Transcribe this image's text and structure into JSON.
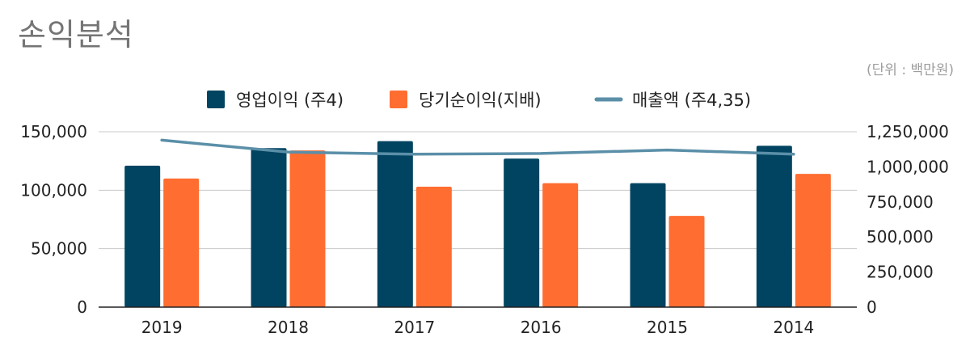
{
  "title": "손익분석",
  "unit_note": "(단위 : 백만원)",
  "colors": {
    "operating_profit": "#004461",
    "net_income": "#ff6d31",
    "revenue": "#5b8fa8"
  },
  "chart_data": {
    "type": "bar",
    "title": "손익분석",
    "categories": [
      "2019",
      "2018",
      "2017",
      "2016",
      "2015",
      "2014"
    ],
    "series": [
      {
        "name": "영업이익 (주4)",
        "kind": "bar",
        "axis": "left",
        "color": "#004461",
        "values": [
          121000,
          136000,
          142000,
          127000,
          106000,
          138000
        ]
      },
      {
        "name": "당기순이익(지배)",
        "kind": "bar",
        "axis": "left",
        "color": "#ff6d31",
        "values": [
          110000,
          134000,
          103000,
          106000,
          78000,
          114000
        ]
      },
      {
        "name": "매출액 (주4,35)",
        "kind": "line",
        "axis": "right",
        "color": "#5b8fa8",
        "values": [
          1190000,
          1105000,
          1090000,
          1095000,
          1120000,
          1090000
        ]
      }
    ],
    "left_axis": {
      "min": 0,
      "max": 150000,
      "ticks": [
        0,
        50000,
        100000,
        150000
      ],
      "tick_labels": [
        "0",
        "50,000",
        "100,000",
        "150,000"
      ]
    },
    "right_axis": {
      "min": 0,
      "max": 1250000,
      "ticks": [
        0,
        250000,
        500000,
        750000,
        1000000,
        1250000
      ],
      "tick_labels": [
        "0",
        "250,000",
        "500,000",
        "750,000",
        "1,000,000",
        "1,250,000"
      ]
    },
    "grid": true,
    "legend_position": "top"
  }
}
